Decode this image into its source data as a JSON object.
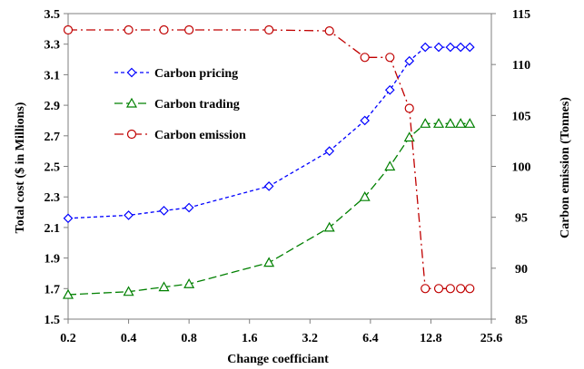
{
  "chart_data": {
    "type": "line",
    "xlabel": "Change coefficiant",
    "ylabel_left": "Total cost ($ in Millions)",
    "ylabel_right": "Carbon emission (Tonnes)",
    "x_scale": "log2",
    "x_ticks": [
      "0.2",
      "0.4",
      "0.8",
      "1.6",
      "3.2",
      "6.4",
      "12.8",
      "25.6"
    ],
    "x_tick_values": [
      0.2,
      0.4,
      0.8,
      1.6,
      3.2,
      6.4,
      12.8,
      25.6
    ],
    "xlim": [
      0.2,
      25.6
    ],
    "y_left_ticks": [
      "1.5",
      "1.7",
      "1.9",
      "2.1",
      "2.3",
      "2.5",
      "2.7",
      "2.9",
      "3.1",
      "3.3",
      "3.5"
    ],
    "y_left_tick_values": [
      1.5,
      1.7,
      1.9,
      2.1,
      2.3,
      2.5,
      2.7,
      2.9,
      3.1,
      3.3,
      3.5
    ],
    "ylim_left": [
      1.5,
      3.5
    ],
    "y_right_ticks": [
      "85",
      "90",
      "95",
      "100",
      "105",
      "110",
      "115"
    ],
    "y_right_tick_values": [
      85,
      90,
      95,
      100,
      105,
      110,
      115
    ],
    "ylim_right": [
      85,
      115
    ],
    "grid": false,
    "legend_position": "top-left",
    "series": [
      {
        "name": "Carbon pricing",
        "axis": "left",
        "color": "#0000ff",
        "marker": "diamond",
        "dash": "dashed",
        "x": [
          0.2,
          0.4,
          0.6,
          0.8,
          2,
          4,
          6,
          8,
          10,
          12,
          14,
          16,
          18,
          20
        ],
        "y": [
          2.16,
          2.18,
          2.21,
          2.23,
          2.37,
          2.6,
          2.8,
          3.0,
          3.19,
          3.28,
          3.28,
          3.28,
          3.28,
          3.28
        ]
      },
      {
        "name": "Carbon trading",
        "axis": "left",
        "color": "#008000",
        "marker": "triangle",
        "dash": "longdash",
        "x": [
          0.2,
          0.4,
          0.6,
          0.8,
          2,
          4,
          6,
          8,
          10,
          12,
          14,
          16,
          18,
          20
        ],
        "y": [
          1.66,
          1.68,
          1.71,
          1.73,
          1.87,
          2.1,
          2.3,
          2.5,
          2.69,
          2.78,
          2.78,
          2.78,
          2.78,
          2.78
        ]
      },
      {
        "name": "Carbon emission",
        "axis": "right",
        "color": "#c00000",
        "marker": "circle",
        "dash": "dashdot",
        "x": [
          0.2,
          0.4,
          0.6,
          0.8,
          2,
          4,
          6,
          8,
          10,
          12,
          14,
          16,
          18,
          20
        ],
        "y": [
          113.4,
          113.4,
          113.4,
          113.4,
          113.4,
          113.3,
          110.7,
          110.7,
          105.7,
          88.0,
          88.0,
          88.0,
          88.0,
          88.0
        ]
      }
    ]
  }
}
